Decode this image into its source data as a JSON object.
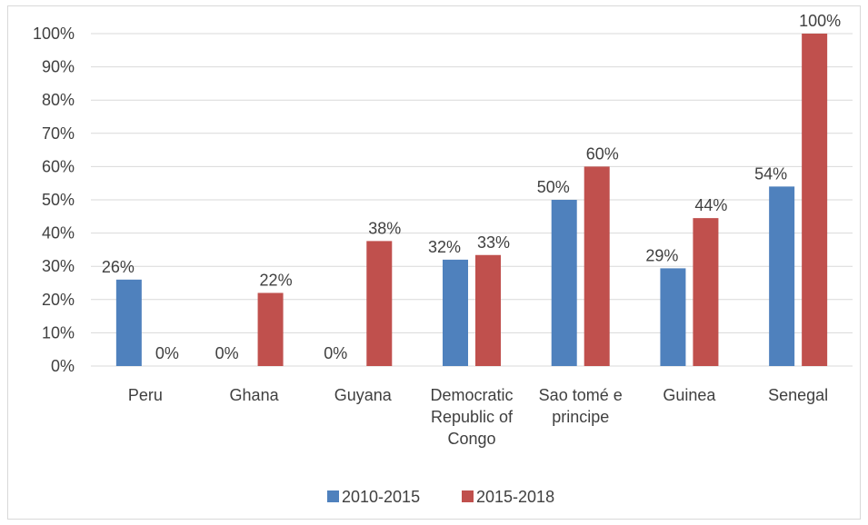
{
  "chart_data": {
    "type": "bar",
    "title": "",
    "xlabel": "",
    "ylabel": "",
    "ylim": [
      0,
      100
    ],
    "yticks": [
      "0%",
      "10%",
      "20%",
      "30%",
      "40%",
      "50%",
      "60%",
      "70%",
      "80%",
      "90%",
      "100%"
    ],
    "ytick_values": [
      0,
      10,
      20,
      30,
      40,
      50,
      60,
      70,
      80,
      90,
      100
    ],
    "grid": true,
    "legend_position": "bottom",
    "categories": [
      [
        "Peru"
      ],
      [
        "Ghana"
      ],
      [
        "Guyana"
      ],
      [
        "Democratic",
        "Republic of",
        "Congo"
      ],
      [
        "Sao tomé e",
        "principe"
      ],
      [
        "Guinea"
      ],
      [
        "Senegal"
      ]
    ],
    "series": [
      {
        "name": "2010-2015",
        "color": "#4f81bd",
        "values": [
          26,
          0,
          0,
          32,
          50,
          29.4,
          54
        ],
        "labels": [
          "26%",
          "0%",
          "0%",
          "32%",
          "50%",
          "29%",
          "54%"
        ]
      },
      {
        "name": "2015-2018",
        "color": "#c0504d",
        "values": [
          0,
          22,
          37.6,
          33.4,
          60,
          44.5,
          100
        ],
        "labels": [
          "0%",
          "22%",
          "38%",
          "33%",
          "60%",
          "44%",
          "100%"
        ]
      }
    ]
  }
}
